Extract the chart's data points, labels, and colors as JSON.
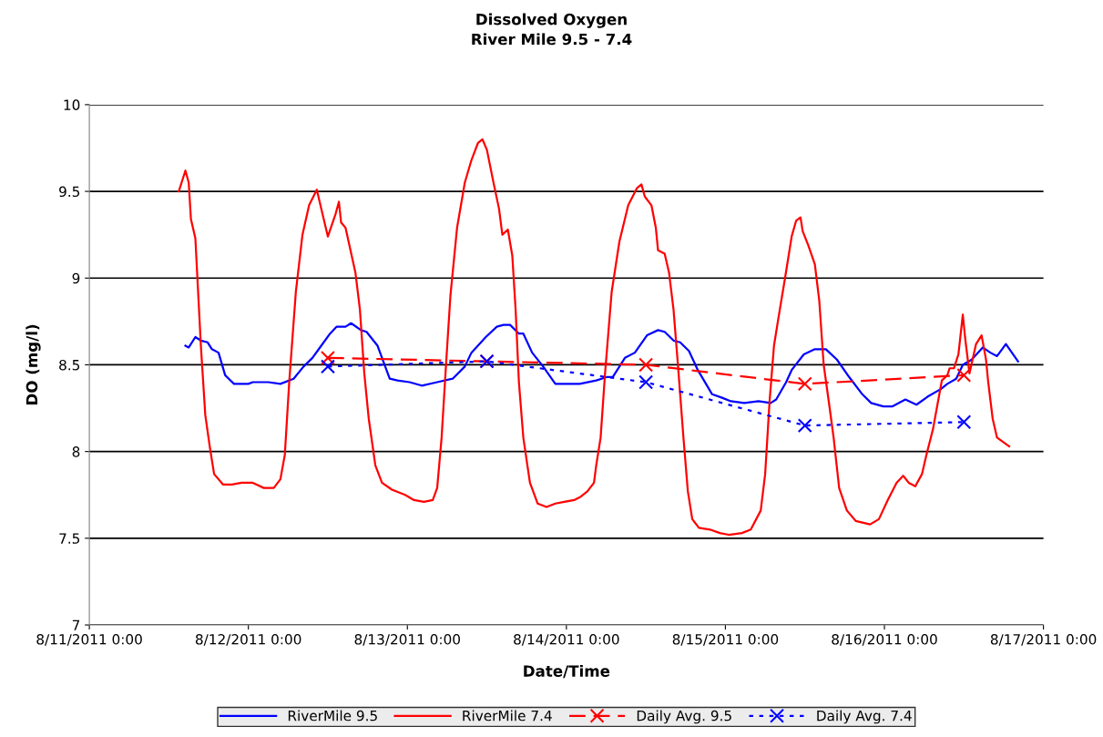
{
  "chart_data": {
    "type": "line",
    "title": "Dissolved Oxygen",
    "subtitle": "River Mile 9.5 - 7.4",
    "xlabel": "Date/Time",
    "ylabel": "DO (mg/l)",
    "xlim": [
      "2011-08-11T00:00",
      "2011-08-17T00:00"
    ],
    "xticks": [
      {
        "value": "2011-08-11T00:00",
        "label": "8/11/2011 0:00"
      },
      {
        "value": "2011-08-12T00:00",
        "label": "8/12/2011 0:00"
      },
      {
        "value": "2011-08-13T00:00",
        "label": "8/13/2011 0:00"
      },
      {
        "value": "2011-08-14T00:00",
        "label": "8/14/2011 0:00"
      },
      {
        "value": "2011-08-15T00:00",
        "label": "8/15/2011 0:00"
      },
      {
        "value": "2011-08-16T00:00",
        "label": "8/16/2011 0:00"
      },
      {
        "value": "2011-08-17T00:00",
        "label": "8/17/2011 0:00"
      }
    ],
    "ylim": [
      7,
      10
    ],
    "yticks": [
      7,
      7.5,
      8,
      8.5,
      9,
      9.5,
      10
    ],
    "grid": "y",
    "legend": "bottom",
    "series": [
      {
        "name": "RiverMile 9.5",
        "color": "#0000ff",
        "marker": "none",
        "line_style": "solid",
        "x": [
          "2011-08-11T14:30",
          "2011-08-11T15:00",
          "2011-08-11T16:00",
          "2011-08-11T16:50",
          "2011-08-11T17:50",
          "2011-08-11T18:30",
          "2011-08-11T19:30",
          "2011-08-11T20:30",
          "2011-08-11T21:50",
          "2011-08-12T00:00",
          "2011-08-12T00:40",
          "2011-08-12T02:00",
          "2011-08-12T03:00",
          "2011-08-12T04:50",
          "2011-08-12T06:50",
          "2011-08-12T08:20",
          "2011-08-12T09:40",
          "2011-08-12T11:00",
          "2011-08-12T12:20",
          "2011-08-12T13:20",
          "2011-08-12T14:40",
          "2011-08-12T15:30",
          "2011-08-12T17:00",
          "2011-08-12T17:50",
          "2011-08-12T19:30",
          "2011-08-12T21:20",
          "2011-08-12T22:30",
          "2011-08-13T00:20",
          "2011-08-13T02:10",
          "2011-08-13T04:30",
          "2011-08-13T06:50",
          "2011-08-13T08:40",
          "2011-08-13T09:40",
          "2011-08-13T11:50",
          "2011-08-13T13:30",
          "2011-08-13T14:30",
          "2011-08-13T15:30",
          "2011-08-13T16:50",
          "2011-08-13T17:30",
          "2011-08-13T18:50",
          "2011-08-13T20:30",
          "2011-08-13T22:20",
          "2011-08-14T02:00",
          "2011-08-14T04:30",
          "2011-08-14T06:10",
          "2011-08-14T07:00",
          "2011-08-14T08:50",
          "2011-08-14T10:20",
          "2011-08-14T12:10",
          "2011-08-14T13:50",
          "2011-08-14T14:50",
          "2011-08-14T16:10",
          "2011-08-14T17:10",
          "2011-08-14T18:30",
          "2011-08-14T19:50",
          "2011-08-14T22:00",
          "2011-08-14T23:30",
          "2011-08-15T00:50",
          "2011-08-15T02:50",
          "2011-08-15T05:00",
          "2011-08-15T06:50",
          "2011-08-15T07:40",
          "2011-08-15T09:10",
          "2011-08-15T10:00",
          "2011-08-15T11:50",
          "2011-08-15T13:30",
          "2011-08-15T15:10",
          "2011-08-15T16:50",
          "2011-08-15T18:40",
          "2011-08-15T20:40",
          "2011-08-15T22:00",
          "2011-08-15T23:50",
          "2011-08-16T01:10",
          "2011-08-16T03:10",
          "2011-08-16T04:50",
          "2011-08-16T06:40",
          "2011-08-16T08:30",
          "2011-08-16T09:30",
          "2011-08-16T10:50",
          "2011-08-16T11:50",
          "2011-08-16T13:10",
          "2011-08-16T14:50",
          "2011-08-16T16:00",
          "2011-08-16T17:00",
          "2011-08-16T18:20",
          "2011-08-16T20:10"
        ],
        "values": [
          8.61,
          8.6,
          8.66,
          8.64,
          8.63,
          8.59,
          8.57,
          8.44,
          8.39,
          8.39,
          8.4,
          8.4,
          8.4,
          8.39,
          8.42,
          8.49,
          8.54,
          8.61,
          8.68,
          8.72,
          8.72,
          8.74,
          8.7,
          8.69,
          8.61,
          8.42,
          8.41,
          8.4,
          8.38,
          8.4,
          8.42,
          8.49,
          8.57,
          8.66,
          8.72,
          8.73,
          8.73,
          8.68,
          8.68,
          8.57,
          8.49,
          8.39,
          8.39,
          8.41,
          8.43,
          8.43,
          8.54,
          8.57,
          8.67,
          8.7,
          8.69,
          8.64,
          8.63,
          8.58,
          8.47,
          8.33,
          8.31,
          8.29,
          8.28,
          8.29,
          8.28,
          8.3,
          8.4,
          8.47,
          8.56,
          8.59,
          8.59,
          8.53,
          8.43,
          8.33,
          8.28,
          8.26,
          8.26,
          8.3,
          8.27,
          8.32,
          8.36,
          8.39,
          8.42,
          8.5,
          8.53,
          8.6,
          8.57,
          8.55,
          8.62,
          8.52
        ]
      },
      {
        "name": "RiverMile 7.4",
        "color": "#ff0000",
        "marker": "none",
        "line_style": "solid",
        "x": [
          "2011-08-11T13:30",
          "2011-08-11T14:30",
          "2011-08-11T15:00",
          "2011-08-11T15:20",
          "2011-08-11T16:00",
          "2011-08-11T16:50",
          "2011-08-11T17:30",
          "2011-08-11T18:10",
          "2011-08-11T18:50",
          "2011-08-11T20:10",
          "2011-08-11T21:30",
          "2011-08-11T23:00",
          "2011-08-12T00:40",
          "2011-08-12T02:20",
          "2011-08-12T03:50",
          "2011-08-12T04:50",
          "2011-08-12T05:30",
          "2011-08-12T06:10",
          "2011-08-12T07:10",
          "2011-08-12T08:10",
          "2011-08-12T09:10",
          "2011-08-12T10:20",
          "2011-08-12T11:00",
          "2011-08-12T12:00",
          "2011-08-12T13:10",
          "2011-08-12T13:40",
          "2011-08-12T14:00",
          "2011-08-12T14:40",
          "2011-08-12T16:10",
          "2011-08-12T16:50",
          "2011-08-12T17:30",
          "2011-08-12T18:10",
          "2011-08-12T19:10",
          "2011-08-12T20:10",
          "2011-08-12T21:40",
          "2011-08-12T23:40",
          "2011-08-13T01:00",
          "2011-08-13T02:30",
          "2011-08-13T03:50",
          "2011-08-13T04:30",
          "2011-08-13T05:10",
          "2011-08-13T05:50",
          "2011-08-13T06:30",
          "2011-08-13T07:30",
          "2011-08-13T08:40",
          "2011-08-13T09:40",
          "2011-08-13T10:40",
          "2011-08-13T11:20",
          "2011-08-13T12:00",
          "2011-08-13T13:00",
          "2011-08-13T13:50",
          "2011-08-13T14:20",
          "2011-08-13T15:10",
          "2011-08-13T15:50",
          "2011-08-13T16:20",
          "2011-08-13T16:50",
          "2011-08-13T17:30",
          "2011-08-13T18:30",
          "2011-08-13T19:40",
          "2011-08-13T21:00",
          "2011-08-13T22:20",
          "2011-08-13T23:40",
          "2011-08-14T01:10",
          "2011-08-14T02:10",
          "2011-08-14T03:10",
          "2011-08-14T04:10",
          "2011-08-14T04:30",
          "2011-08-14T05:10",
          "2011-08-14T05:50",
          "2011-08-14T06:50",
          "2011-08-14T08:00",
          "2011-08-14T09:20",
          "2011-08-14T10:40",
          "2011-08-14T11:20",
          "2011-08-14T11:50",
          "2011-08-14T12:50",
          "2011-08-14T13:30",
          "2011-08-14T13:50",
          "2011-08-14T14:50",
          "2011-08-14T15:30",
          "2011-08-14T16:10",
          "2011-08-14T16:50",
          "2011-08-14T17:40",
          "2011-08-14T18:20",
          "2011-08-14T19:00",
          "2011-08-14T20:00",
          "2011-08-14T21:40",
          "2011-08-14T23:10",
          "2011-08-15T00:30",
          "2011-08-15T02:30",
          "2011-08-15T03:50",
          "2011-08-15T05:20",
          "2011-08-15T06:00",
          "2011-08-15T06:40",
          "2011-08-15T07:20",
          "2011-08-15T08:00",
          "2011-08-15T09:00",
          "2011-08-15T10:00",
          "2011-08-15T10:40",
          "2011-08-15T11:20",
          "2011-08-15T11:40",
          "2011-08-15T12:30",
          "2011-08-15T13:30",
          "2011-08-15T14:10",
          "2011-08-15T14:50",
          "2011-08-15T15:40",
          "2011-08-15T16:20",
          "2011-08-15T17:10",
          "2011-08-15T18:20",
          "2011-08-15T19:40",
          "2011-08-15T21:50",
          "2011-08-15T23:10",
          "2011-08-16T00:30",
          "2011-08-16T01:50",
          "2011-08-16T02:50",
          "2011-08-16T03:40",
          "2011-08-16T04:40",
          "2011-08-16T05:40",
          "2011-08-16T06:20",
          "2011-08-16T07:00",
          "2011-08-16T07:20",
          "2011-08-16T08:00",
          "2011-08-16T08:40",
          "2011-08-16T09:30",
          "2011-08-16T09:50",
          "2011-08-16T10:30",
          "2011-08-16T11:10",
          "2011-08-16T11:50",
          "2011-08-16T12:10",
          "2011-08-16T12:50",
          "2011-08-16T13:50",
          "2011-08-16T14:40",
          "2011-08-16T15:20",
          "2011-08-16T15:40",
          "2011-08-16T16:20",
          "2011-08-16T17:00",
          "2011-08-16T18:50"
        ],
        "values": [
          9.5,
          9.62,
          9.55,
          9.34,
          9.23,
          8.61,
          8.21,
          8.03,
          7.87,
          7.81,
          7.81,
          7.82,
          7.82,
          7.79,
          7.79,
          7.84,
          7.98,
          8.4,
          8.92,
          9.25,
          9.42,
          9.51,
          9.4,
          9.24,
          9.37,
          9.44,
          9.32,
          9.29,
          9.03,
          8.82,
          8.45,
          8.19,
          7.92,
          7.82,
          7.78,
          7.75,
          7.72,
          7.71,
          7.72,
          7.79,
          8.08,
          8.5,
          8.9,
          9.29,
          9.55,
          9.68,
          9.78,
          9.8,
          9.74,
          9.55,
          9.4,
          9.25,
          9.28,
          9.13,
          8.82,
          8.4,
          8.08,
          7.82,
          7.7,
          7.68,
          7.7,
          7.71,
          7.72,
          7.74,
          7.77,
          7.82,
          7.92,
          8.08,
          8.45,
          8.92,
          9.21,
          9.42,
          9.52,
          9.54,
          9.47,
          9.42,
          9.29,
          9.16,
          9.14,
          9.03,
          8.82,
          8.5,
          8.08,
          7.77,
          7.61,
          7.56,
          7.55,
          7.53,
          7.52,
          7.53,
          7.55,
          7.66,
          7.87,
          8.29,
          8.61,
          8.77,
          9.0,
          9.24,
          9.33,
          9.35,
          9.27,
          9.19,
          9.08,
          8.87,
          8.5,
          8.27,
          8.08,
          7.79,
          7.66,
          7.6,
          7.58,
          7.61,
          7.72,
          7.82,
          7.86,
          7.82,
          7.8,
          7.87,
          7.98,
          8.08,
          8.13,
          8.27,
          8.41,
          8.44,
          8.48,
          8.48,
          8.56,
          8.79,
          8.66,
          8.45,
          8.62,
          8.67,
          8.53,
          8.4,
          8.19,
          8.08,
          8.03
        ]
      },
      {
        "name": "Daily Avg. 9.5",
        "color": "#ff0000",
        "marker": "cross",
        "line_style": "dashed",
        "x": [
          "2011-08-12T12:00",
          "2011-08-13T12:00",
          "2011-08-14T12:00",
          "2011-08-15T12:00",
          "2011-08-16T12:00"
        ],
        "values": [
          8.54,
          8.52,
          8.5,
          8.39,
          8.44
        ]
      },
      {
        "name": "Daily Avg. 7.4",
        "color": "#0000ff",
        "marker": "cross",
        "line_style": "dotted",
        "x": [
          "2011-08-12T12:00",
          "2011-08-13T12:00",
          "2011-08-14T12:00",
          "2011-08-15T12:00",
          "2011-08-16T12:00"
        ],
        "values": [
          8.49,
          8.52,
          8.4,
          8.15,
          8.17
        ]
      }
    ]
  }
}
